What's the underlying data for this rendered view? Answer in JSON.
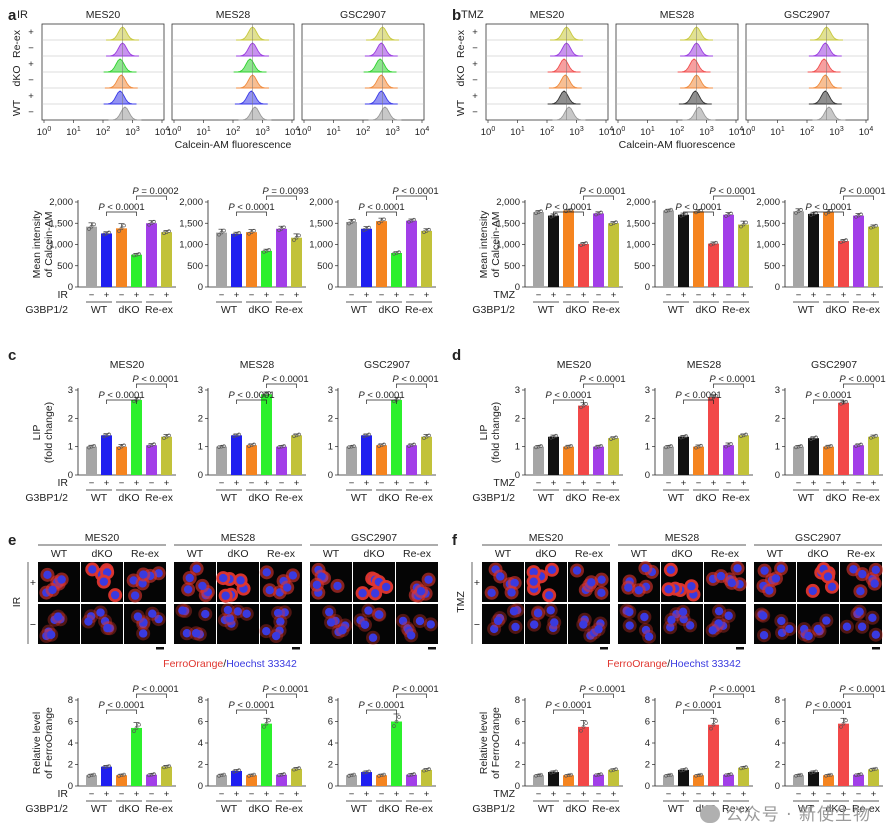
{
  "panels": {
    "a": {
      "label": "a",
      "treatment": "IR",
      "color": "#1a1aee",
      "lines": [
        "MES20",
        "MES28",
        "GSC2907"
      ],
      "hist_colors": [
        "#c8c83c",
        "#9a3ce0",
        "#2fd22f",
        "#f08a3c",
        "#3a3ae8",
        "#9a9a9a"
      ]
    },
    "b": {
      "label": "b",
      "treatment": "TMZ",
      "color": "#111111",
      "lines": [
        "MES20",
        "MES28",
        "GSC2907"
      ],
      "hist_colors": [
        "#c8c83c",
        "#9a3ce0",
        "#f05050",
        "#f08a3c",
        "#333333",
        "#9a9a9a"
      ]
    },
    "c": {
      "label": "c",
      "treatment": "IR",
      "lines": [
        "MES20",
        "MES28",
        "GSC2907"
      ]
    },
    "d": {
      "label": "d",
      "treatment": "TMZ",
      "lines": [
        "MES20",
        "MES28",
        "GSC2907"
      ]
    },
    "e": {
      "label": "e",
      "treatment": "IR",
      "lines": [
        "MES20",
        "MES28",
        "GSC2907"
      ]
    },
    "f": {
      "label": "f",
      "treatment": "TMZ",
      "lines": [
        "MES20",
        "MES28",
        "GSC2907"
      ]
    }
  },
  "hist": {
    "row_labels": [
      "Re-ex",
      "dKO",
      "WT"
    ],
    "signs": [
      "+",
      "−"
    ],
    "xlabel": "Calcein-AM fluorescence",
    "ticks": [
      {
        "b": "10",
        "e": "0"
      },
      {
        "b": "10",
        "e": "1"
      },
      {
        "b": "10",
        "e": "2"
      },
      {
        "b": "10",
        "e": "3"
      },
      {
        "b": "10",
        "e": "4"
      }
    ]
  },
  "groups": {
    "factor": "G3BP1/2",
    "names": [
      "WT",
      "dKO",
      "Re-ex"
    ],
    "signs": [
      "−",
      "+",
      "−",
      "+",
      "−",
      "+"
    ]
  },
  "colors": {
    "grey": "#a6a6a6",
    "ir": "#1f1ff0",
    "tmz": "#111111",
    "orange": "#f5841f",
    "green": "#2cf02c",
    "red": "#f24848",
    "purple": "#a23ee8",
    "olive": "#c2c23a"
  },
  "chart_data": [
    {
      "id": "a",
      "type": "bar",
      "ylabel": "Mean intensity\nof Calcein-AM",
      "yticks": [
        "0",
        "500",
        "1,000",
        "1,500",
        "2,000"
      ],
      "ylim": [
        0,
        2000
      ],
      "series": [
        {
          "line": "MES20",
          "values": [
            1420,
            1260,
            1380,
            760,
            1500,
            1290
          ],
          "errors": [
            90,
            40,
            110,
            30,
            60,
            40
          ],
          "p_left": "P < 0.0001",
          "p_right": "P = 0.0002"
        },
        {
          "line": "MES28",
          "values": [
            1280,
            1250,
            1290,
            850,
            1370,
            1160
          ],
          "errors": [
            80,
            40,
            60,
            40,
            60,
            90
          ],
          "p_left": "P < 0.0001",
          "p_right": "P = 0.0093"
        },
        {
          "line": "GSC2907",
          "values": [
            1530,
            1370,
            1550,
            800,
            1560,
            1320
          ],
          "errors": [
            60,
            50,
            70,
            30,
            40,
            50
          ],
          "p_left": "P < 0.0001",
          "p_right": "P < 0.0001"
        }
      ]
    },
    {
      "id": "b",
      "type": "bar",
      "ylabel": "Mean intensity\nof Calcein-AM",
      "yticks": [
        "0",
        "500",
        "1,000",
        "1,500",
        "2,000"
      ],
      "ylim": [
        0,
        2000
      ],
      "series": [
        {
          "line": "MES20",
          "values": [
            1760,
            1680,
            1800,
            1010,
            1730,
            1500
          ],
          "errors": [
            40,
            40,
            30,
            40,
            40,
            40
          ],
          "p_left": "P < 0.0001",
          "p_right": "P < 0.0001"
        },
        {
          "line": "MES28",
          "values": [
            1800,
            1700,
            1780,
            1020,
            1700,
            1470
          ],
          "errors": [
            30,
            40,
            40,
            40,
            50,
            80
          ],
          "p_left": "P < 0.0001",
          "p_right": "P < 0.0001"
        },
        {
          "line": "GSC2907",
          "values": [
            1780,
            1720,
            1760,
            1080,
            1680,
            1420
          ],
          "errors": [
            60,
            40,
            60,
            40,
            50,
            40
          ],
          "p_left": "P < 0.0001",
          "p_right": "P < 0.0001"
        }
      ]
    },
    {
      "id": "c",
      "type": "bar",
      "ylabel": "LIP\n(fold change)",
      "yticks": [
        "0",
        "1",
        "2",
        "3"
      ],
      "ylim": [
        0,
        3
      ],
      "series": [
        {
          "line": "MES20",
          "values": [
            1.0,
            1.4,
            1.0,
            2.65,
            1.05,
            1.35
          ],
          "errors": [
            0.05,
            0.06,
            0.08,
            0.08,
            0.06,
            0.08
          ],
          "p_left": "P < 0.0001",
          "p_right": "P < 0.0001"
        },
        {
          "line": "MES28",
          "values": [
            1.0,
            1.4,
            1.05,
            2.85,
            1.0,
            1.4
          ],
          "errors": [
            0.03,
            0.05,
            0.05,
            0.08,
            0.04,
            0.05
          ],
          "p_left": "P < 0.0001",
          "p_right": "P < 0.0001"
        },
        {
          "line": "GSC2907",
          "values": [
            1.0,
            1.4,
            1.05,
            2.65,
            1.05,
            1.35
          ],
          "errors": [
            0.03,
            0.05,
            0.05,
            0.08,
            0.05,
            0.08
          ],
          "p_left": "P < 0.0001",
          "p_right": "P < 0.0001"
        }
      ]
    },
    {
      "id": "d",
      "type": "bar",
      "ylabel": "LIP\n(fold change)",
      "yticks": [
        "0",
        "1",
        "2",
        "3"
      ],
      "ylim": [
        0,
        3
      ],
      "series": [
        {
          "line": "MES20",
          "values": [
            1.0,
            1.35,
            1.0,
            2.45,
            1.0,
            1.3
          ],
          "errors": [
            0.04,
            0.06,
            0.05,
            0.1,
            0.05,
            0.05
          ],
          "p_left": "P < 0.0001",
          "p_right": "P < 0.0001"
        },
        {
          "line": "MES28",
          "values": [
            1.0,
            1.35,
            1.0,
            2.75,
            1.05,
            1.4
          ],
          "errors": [
            0.04,
            0.05,
            0.06,
            0.08,
            0.08,
            0.05
          ],
          "p_left": "P < 0.0001",
          "p_right": "P < 0.0001"
        },
        {
          "line": "GSC2907",
          "values": [
            1.0,
            1.3,
            1.0,
            2.55,
            1.05,
            1.35
          ],
          "errors": [
            0.04,
            0.05,
            0.05,
            0.06,
            0.05,
            0.06
          ],
          "p_left": "P < 0.0001",
          "p_right": "P < 0.0001"
        }
      ]
    },
    {
      "id": "e",
      "type": "bar",
      "ylabel": "Relative level\nof FerroOrange",
      "yticks": [
        "0",
        "2",
        "4",
        "6",
        "8"
      ],
      "ylim": [
        0,
        8
      ],
      "series": [
        {
          "line": "MES20",
          "values": [
            1.0,
            1.8,
            1.0,
            5.4,
            1.05,
            1.8
          ],
          "errors": [
            0.1,
            0.12,
            0.1,
            0.5,
            0.1,
            0.12
          ],
          "p_left": "P < 0.0001",
          "p_right": "P < 0.0001"
        },
        {
          "line": "MES28",
          "values": [
            1.0,
            1.4,
            1.0,
            5.8,
            1.05,
            1.6
          ],
          "errors": [
            0.1,
            0.12,
            0.1,
            0.5,
            0.1,
            0.12
          ],
          "p_left": "P < 0.0001",
          "p_right": "P < 0.0001"
        },
        {
          "line": "GSC2907",
          "values": [
            1.0,
            1.3,
            1.0,
            6.0,
            1.05,
            1.5
          ],
          "errors": [
            0.1,
            0.1,
            0.1,
            0.7,
            0.1,
            0.12
          ],
          "p_left": "P < 0.0001",
          "p_right": "P < 0.0001"
        }
      ]
    },
    {
      "id": "f",
      "type": "bar",
      "ylabel": "Relative level\nof FerroOrange",
      "yticks": [
        "0",
        "2",
        "4",
        "6",
        "8"
      ],
      "ylim": [
        0,
        8
      ],
      "series": [
        {
          "line": "MES20",
          "values": [
            1.0,
            1.3,
            1.0,
            5.5,
            1.05,
            1.5
          ],
          "errors": [
            0.08,
            0.1,
            0.08,
            0.6,
            0.08,
            0.1
          ],
          "p_left": "P < 0.0001",
          "p_right": "P < 0.0001"
        },
        {
          "line": "MES28",
          "values": [
            1.0,
            1.5,
            1.0,
            5.7,
            1.05,
            1.7
          ],
          "errors": [
            0.08,
            0.1,
            0.08,
            0.6,
            0.08,
            0.1
          ],
          "p_left": "P < 0.0001",
          "p_right": "P < 0.0001"
        },
        {
          "line": "GSC2907",
          "values": [
            1.0,
            1.3,
            1.0,
            5.8,
            1.05,
            1.55
          ],
          "errors": [
            0.08,
            0.1,
            0.08,
            0.5,
            0.08,
            0.1
          ],
          "p_left": "P < 0.0001",
          "p_right": "P < 0.0001"
        }
      ]
    }
  ],
  "microscopy": {
    "conditions": [
      "WT",
      "dKO",
      "Re-ex"
    ],
    "signs": [
      "+",
      "−"
    ],
    "legend_red": "FerroOrange",
    "legend_sep": "/",
    "legend_blue": "Hoechst 33342",
    "red_color": "#e0362f",
    "blue_color": "#3a3ae0"
  },
  "watermark": {
    "text": "公众号 · 新使生物",
    "icon": "wechat-icon"
  }
}
